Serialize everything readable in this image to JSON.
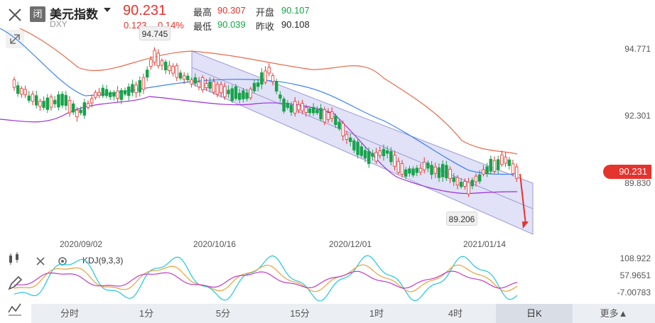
{
  "header": {
    "badge": "闭",
    "title": "美元指数",
    "symbol": "DXY",
    "price": "90.231",
    "change": "0.123",
    "change_pct": "0.14%",
    "stats": {
      "high_label": "最高",
      "high": "90.307",
      "open_label": "开盘",
      "open": "90.107",
      "low_label": "最低",
      "low": "90.039",
      "prev_close_label": "昨收",
      "prev_close": "90.108"
    }
  },
  "chart": {
    "y_ticks": [
      "94.771",
      "92.301",
      "89.830"
    ],
    "current_price_tag": "90.231",
    "high_marker": "94.745",
    "low_marker": "89.206",
    "x_ticks": [
      "2020/09/02",
      "2020/10/16",
      "2020/12/01",
      "2021/01/14"
    ]
  },
  "indicator": {
    "label": "KDJ(9,3,3)",
    "y_ticks": [
      "108.922",
      "57.9651",
      "-7.00783"
    ]
  },
  "tabs": [
    {
      "label": "分时"
    },
    {
      "label": "1分"
    },
    {
      "label": "5分"
    },
    {
      "label": "15分"
    },
    {
      "label": "1时"
    },
    {
      "label": "4时"
    },
    {
      "label": "日K"
    },
    {
      "label": "更多▲"
    }
  ],
  "colors": {
    "up": "#e5332e",
    "down": "#16a34a",
    "accent": "#5b5fc7"
  },
  "chart_data": {
    "type": "candlestick",
    "x_ticks": [
      "2020/09/02",
      "2020/10/16",
      "2020/12/01",
      "2021/01/14"
    ],
    "y_ticks": [
      94.771,
      92.301,
      89.83
    ],
    "ylim": [
      88.0,
      96.0
    ],
    "indicators": [
      "MA",
      "Bollinger",
      "channel",
      "KDJ(9,3,3)"
    ],
    "grid": true
  }
}
